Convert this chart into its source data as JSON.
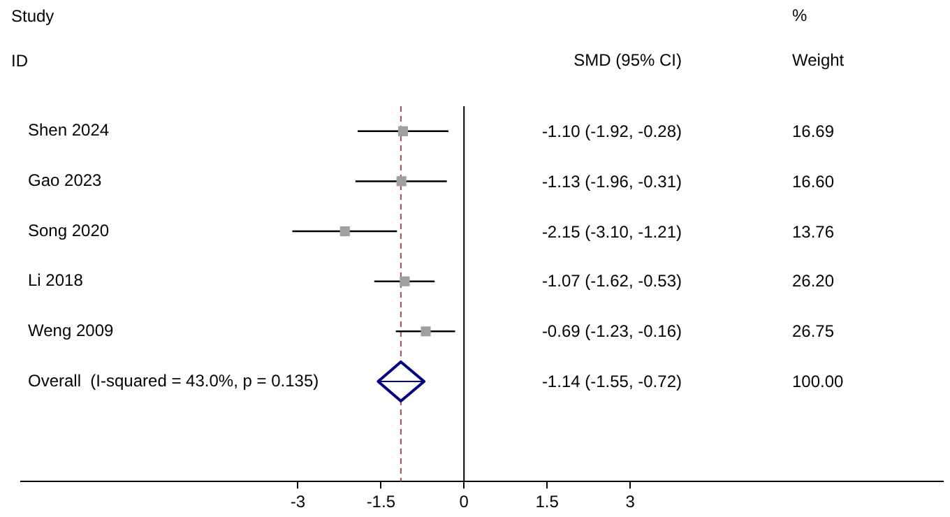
{
  "chart_data": [
    {
      "type": "scatter",
      "orientation": "horizontal",
      "categories": [
        "Shen 2024",
        "Gao 2023",
        "Song 2020",
        "Li 2018",
        "Weng 2009",
        "Overall  (I-squared = 43.0%, p = 0.135)"
      ],
      "series": [
        {
          "color": "#a0a0a0",
          "marker": "square",
          "values": [
            -1.1,
            -1.13,
            -2.15,
            -1.07,
            -0.69,
            null
          ],
          "errors": [
            [
              -1.92,
              -0.28
            ],
            [
              -1.96,
              -0.31
            ],
            [
              -3.1,
              -1.21
            ],
            [
              -1.62,
              -0.53
            ],
            [
              -1.23,
              -0.16
            ],
            null
          ]
        },
        {
          "color": "#000080",
          "marker": "diamond",
          "values": [
            null,
            null,
            null,
            null,
            null,
            -1.14
          ],
          "errors": [
            null,
            null,
            null,
            null,
            null,
            [
              -1.55,
              -0.72
            ]
          ]
        }
      ],
      "xlim": [
        -8,
        8.65
      ],
      "xticks": [
        -3,
        -1.5,
        0,
        1.5,
        3
      ],
      "ref_lines": [
        {
          "axis": "x",
          "value": 0,
          "color": "#000000",
          "line_style": "solid"
        },
        {
          "axis": "x",
          "value": -1.14,
          "color": "#a05050",
          "line_style": "dashed"
        }
      ],
      "annotations": [
        "Study",
        "ID"
      ],
      "grid": false,
      "legend": false
    },
    {
      "type": "other",
      "annotations": [
        "SMD (95% CI)",
        "-1.10 (-1.92, -0.28)",
        "-1.13 (-1.96, -0.31)",
        "-2.15 (-3.10, -1.21)",
        "-1.07 (-1.62, -0.53)",
        "-0.69 (-1.23, -0.16)",
        "-1.14 (-1.55, -0.72)",
        "%",
        "Weight",
        "16.69",
        "16.60",
        "13.76",
        "26.20",
        "26.75",
        "100.00"
      ]
    }
  ]
}
